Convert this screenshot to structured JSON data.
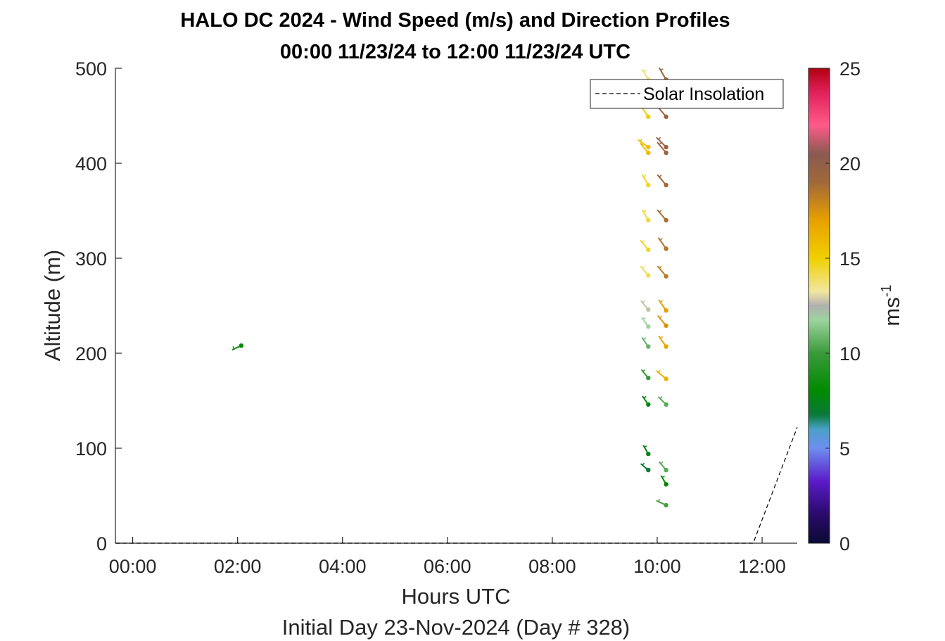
{
  "chart_data": {
    "type": "scatter",
    "title": "HALO DC 2024 - Wind Speed (m/s) and Direction Profiles",
    "subtitle": "00:00 11/23/24 to 12:00 11/23/24  UTC",
    "xlabel": "Hours UTC",
    "xlabel2": "Initial Day 23-Nov-2024 (Day # 328)",
    "ylabel": "Altitude (m)",
    "colorbar_label": "ms",
    "colorbar_label_exp": "-1",
    "xlim": [
      -0.33,
      12.67
    ],
    "ylim": [
      0,
      500
    ],
    "x_ticks": [
      0,
      2,
      4,
      6,
      8,
      10,
      12
    ],
    "x_tick_labels": [
      "00:00",
      "02:00",
      "04:00",
      "06:00",
      "08:00",
      "10:00",
      "12:00"
    ],
    "y_ticks": [
      0,
      100,
      200,
      300,
      400,
      500
    ],
    "y_tick_labels": [
      "0",
      "100",
      "200",
      "300",
      "400",
      "500"
    ],
    "cbar_ticks": [
      0,
      5,
      10,
      15,
      20,
      25
    ],
    "cbar_tick_labels": [
      "0",
      "5",
      "10",
      "15",
      "20",
      "25"
    ],
    "cbar_range": [
      0,
      25
    ],
    "legend": {
      "label": "Solar Insolation",
      "position": "top-right"
    },
    "grid": false,
    "solar_insolation": {
      "x": [
        -0.33,
        11.83,
        12.67
      ],
      "y": [
        0,
        0,
        122
      ]
    },
    "wind_barbs": [
      {
        "t": 2.07,
        "alt": 208,
        "speed": 8.2,
        "dir": 245
      },
      {
        "t": 9.83,
        "alt": 488,
        "speed": 13.8,
        "dir": 330
      },
      {
        "t": 9.83,
        "alt": 470,
        "speed": 14.6,
        "dir": 325
      },
      {
        "t": 9.83,
        "alt": 449,
        "speed": 15.0,
        "dir": 325
      },
      {
        "t": 9.83,
        "alt": 417,
        "speed": 15.8,
        "dir": 305
      },
      {
        "t": 9.83,
        "alt": 411,
        "speed": 15.8,
        "dir": 320
      },
      {
        "t": 9.83,
        "alt": 377,
        "speed": 14.6,
        "dir": 330
      },
      {
        "t": 9.83,
        "alt": 340,
        "speed": 14.4,
        "dir": 330
      },
      {
        "t": 9.83,
        "alt": 309,
        "speed": 14.6,
        "dir": 320
      },
      {
        "t": 9.83,
        "alt": 282,
        "speed": 14.0,
        "dir": 320
      },
      {
        "t": 9.83,
        "alt": 246,
        "speed": 12.5,
        "dir": 320
      },
      {
        "t": 9.83,
        "alt": 228,
        "speed": 11.8,
        "dir": 325
      },
      {
        "t": 9.83,
        "alt": 207,
        "speed": 10.8,
        "dir": 325
      },
      {
        "t": 9.83,
        "alt": 174,
        "speed": 10.0,
        "dir": 320
      },
      {
        "t": 9.83,
        "alt": 146,
        "speed": 7.8,
        "dir": 325
      },
      {
        "t": 9.83,
        "alt": 94,
        "speed": 7.5,
        "dir": 330
      },
      {
        "t": 9.83,
        "alt": 77,
        "speed": 7.0,
        "dir": 310
      },
      {
        "t": 10.17,
        "alt": 488,
        "speed": 19.5,
        "dir": 330
      },
      {
        "t": 10.17,
        "alt": 470,
        "speed": 19.0,
        "dir": 320
      },
      {
        "t": 10.17,
        "alt": 449,
        "speed": 19.5,
        "dir": 320
      },
      {
        "t": 10.17,
        "alt": 417,
        "speed": 19.5,
        "dir": 315
      },
      {
        "t": 10.17,
        "alt": 411,
        "speed": 19.5,
        "dir": 320
      },
      {
        "t": 10.17,
        "alt": 377,
        "speed": 19.0,
        "dir": 320
      },
      {
        "t": 10.17,
        "alt": 340,
        "speed": 18.8,
        "dir": 320
      },
      {
        "t": 10.17,
        "alt": 310,
        "speed": 18.5,
        "dir": 325
      },
      {
        "t": 10.17,
        "alt": 281,
        "speed": 18.3,
        "dir": 320
      },
      {
        "t": 10.17,
        "alt": 245,
        "speed": 17.0,
        "dir": 325
      },
      {
        "t": 10.17,
        "alt": 229,
        "speed": 17.5,
        "dir": 320
      },
      {
        "t": 10.17,
        "alt": 207,
        "speed": 16.8,
        "dir": 325
      },
      {
        "t": 10.17,
        "alt": 173,
        "speed": 16.2,
        "dir": 310
      },
      {
        "t": 10.17,
        "alt": 146,
        "speed": 10.5,
        "dir": 315
      },
      {
        "t": 10.17,
        "alt": 77,
        "speed": 10.5,
        "dir": 320
      },
      {
        "t": 10.17,
        "alt": 62,
        "speed": 8.0,
        "dir": 330
      },
      {
        "t": 10.17,
        "alt": 40,
        "speed": 10.2,
        "dir": 295
      }
    ]
  }
}
